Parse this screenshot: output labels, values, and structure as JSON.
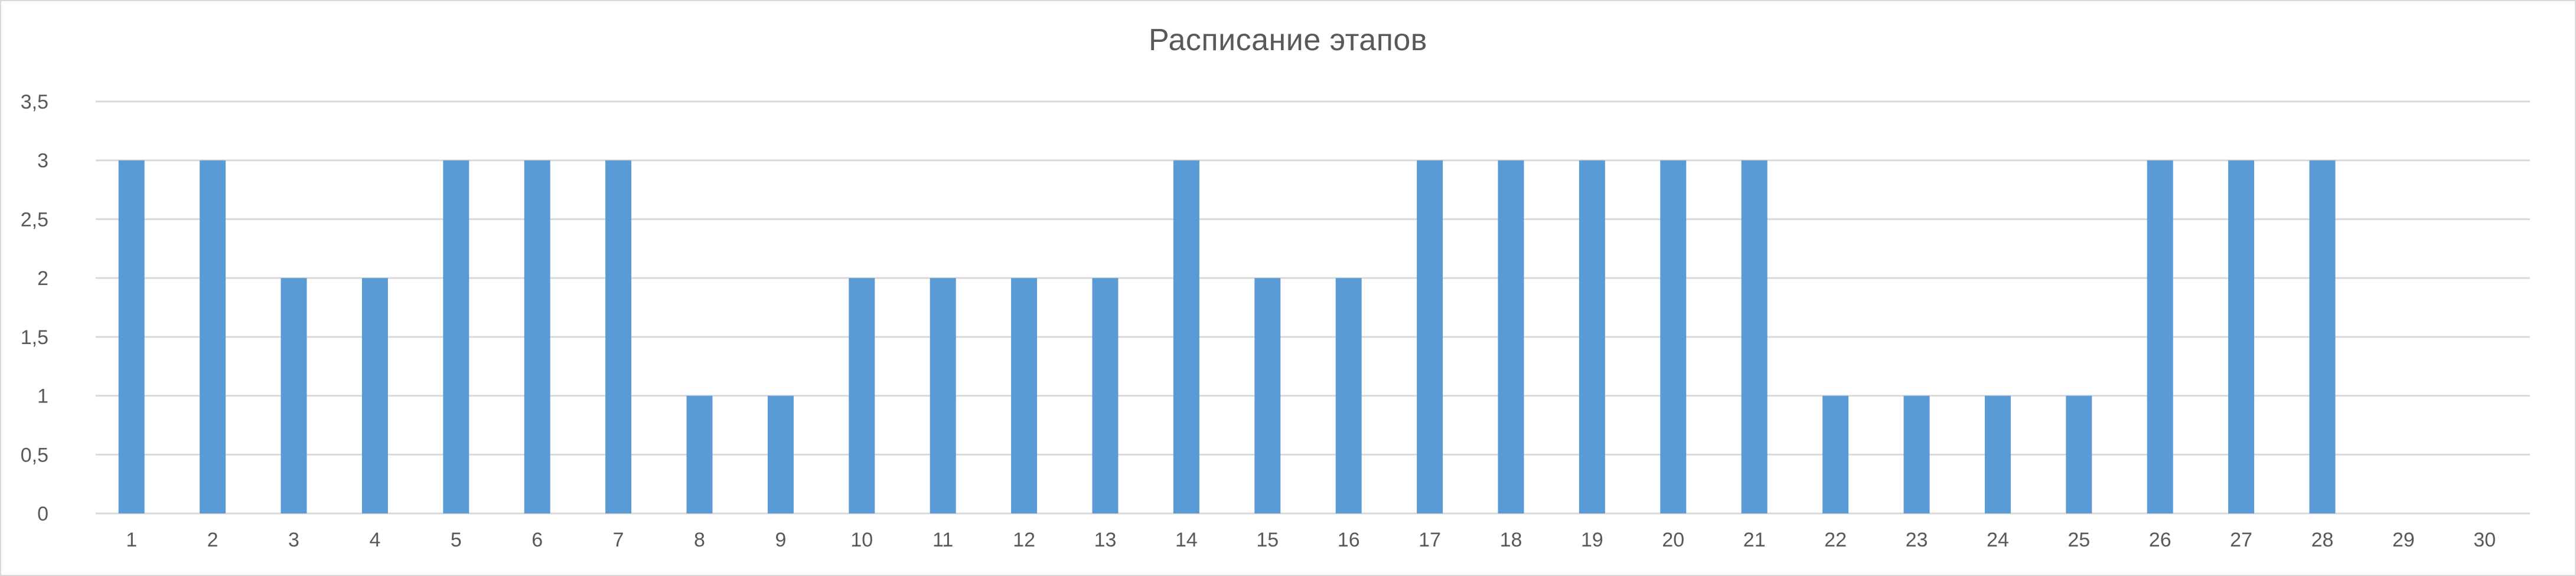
{
  "chart_data": {
    "type": "bar",
    "title": "Расписание этапов",
    "xlabel": "",
    "ylabel": "",
    "ylim": [
      0,
      3.5
    ],
    "y_ticks": [
      "0",
      "0,5",
      "1",
      "1,5",
      "2",
      "2,5",
      "3",
      "3,5"
    ],
    "y_tick_values": [
      0,
      0.5,
      1,
      1.5,
      2,
      2.5,
      3,
      3.5
    ],
    "categories": [
      "1",
      "2",
      "3",
      "4",
      "5",
      "6",
      "7",
      "8",
      "9",
      "10",
      "11",
      "12",
      "13",
      "14",
      "15",
      "16",
      "17",
      "18",
      "19",
      "20",
      "21",
      "22",
      "23",
      "24",
      "25",
      "26",
      "27",
      "28",
      "29",
      "30"
    ],
    "values": [
      3,
      3,
      2,
      2,
      3,
      3,
      3,
      1,
      1,
      2,
      2,
      2,
      2,
      3,
      2,
      2,
      3,
      3,
      3,
      3,
      3,
      1,
      1,
      1,
      1,
      3,
      3,
      3,
      0,
      0
    ],
    "grid": true,
    "legend": "none",
    "colors": {
      "bar": "#5b9bd5",
      "grid": "#d9d9d9",
      "text": "#595959"
    }
  }
}
